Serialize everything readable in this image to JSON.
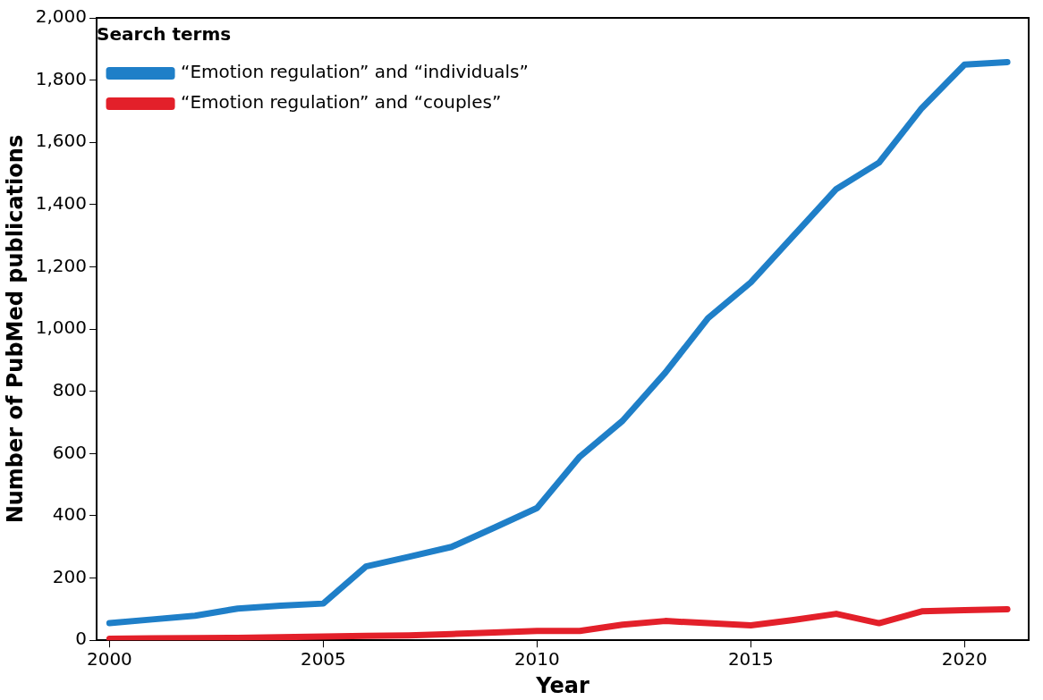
{
  "chart_data": {
    "type": "line",
    "xlabel": "Year",
    "ylabel": "Number of PubMed publications",
    "legend_title": "Search terms",
    "legend": "top left",
    "grid": false,
    "marker": "none",
    "line_style": "solid",
    "x": [
      2000,
      2001,
      2002,
      2003,
      2004,
      2005,
      2006,
      2007,
      2008,
      2009,
      2010,
      2011,
      2012,
      2013,
      2014,
      2015,
      2016,
      2017,
      2018,
      2019,
      2020,
      2021
    ],
    "xlim": [
      1999.7,
      2021.5
    ],
    "xticks": [
      2000,
      2005,
      2010,
      2015,
      2020
    ],
    "ylim": [
      0,
      2000
    ],
    "yticks": [
      0,
      200,
      400,
      600,
      800,
      {
        "value": 1000,
        "label": "1,000"
      },
      {
        "value": 1200,
        "label": "1,200"
      },
      {
        "value": 1400,
        "label": "1,400"
      },
      {
        "value": 1600,
        "label": "1,600"
      },
      {
        "value": 1800,
        "label": "1,800"
      },
      {
        "value": 2000,
        "label": "2,000"
      }
    ],
    "series": [
      {
        "name": "“Emotion regulation” and “individuals”",
        "color": "#1f7fc8",
        "values": [
          55,
          67,
          79,
          102,
          111,
          118,
          237,
          268,
          300,
          362,
          425,
          590,
          705,
          860,
          1035,
          1150,
          1300,
          1450,
          1535,
          1710,
          1850,
          1858
        ]
      },
      {
        "name": "“Emotion regulation” and “couples”",
        "color": "#e3202a",
        "values": [
          5,
          6,
          7,
          8,
          10,
          12,
          14,
          16,
          20,
          25,
          30,
          30,
          50,
          62,
          55,
          48,
          65,
          85,
          55,
          93,
          97,
          100
        ]
      }
    ]
  }
}
